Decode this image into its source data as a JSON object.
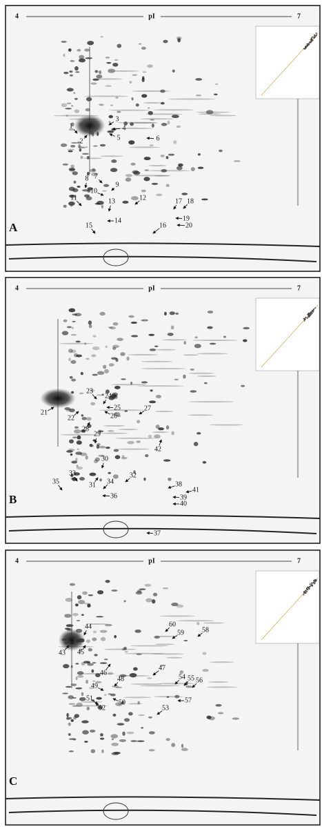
{
  "panels": [
    {
      "label": "A",
      "axis": {
        "left": "4",
        "center": "pI",
        "right": "7"
      },
      "spots": [
        "1",
        "2",
        "3",
        "4",
        "5",
        "6",
        "7",
        "8",
        "9",
        "10",
        "11",
        "12",
        "13",
        "14",
        "15",
        "16",
        "17",
        "18",
        "19",
        "20"
      ]
    },
    {
      "label": "B",
      "axis": {
        "left": "4",
        "center": "pI",
        "right": "7"
      },
      "spots": [
        "21",
        "22",
        "23",
        "24",
        "25",
        "26",
        "27",
        "28",
        "29",
        "30",
        "31",
        "32",
        "33",
        "34",
        "35",
        "36",
        "37",
        "38",
        "39",
        "40",
        "41",
        "42"
      ]
    },
    {
      "label": "C",
      "axis": {
        "left": "4",
        "center": "pI",
        "right": "7"
      },
      "spots": [
        "43",
        "44",
        "45",
        "46",
        "47",
        "48",
        "49",
        "50",
        "51",
        "52",
        "53",
        "54",
        "55",
        "56",
        "57",
        "58",
        "59",
        "60"
      ]
    }
  ]
}
